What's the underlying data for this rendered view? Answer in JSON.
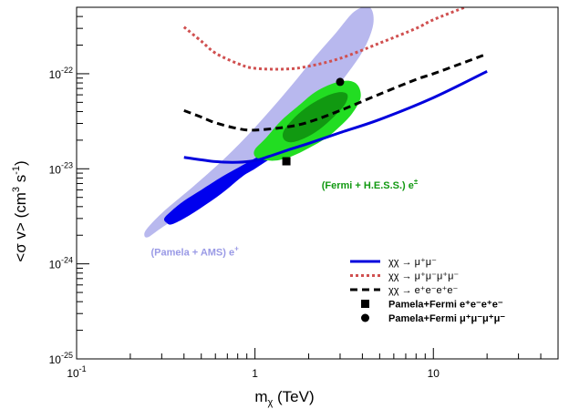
{
  "chart_data": {
    "type": "line",
    "xscale": "log",
    "yscale": "log",
    "xlim": [
      0.1,
      50
    ],
    "ylim": [
      1e-25,
      5e-22
    ],
    "xlabel_main": "m",
    "xlabel_sub": "χ",
    "xlabel_unit": " (TeV)",
    "ylabel_main": "<σ v> (cm",
    "ylabel_sup1": "3",
    "ylabel_mid": " s",
    "ylabel_sup2": "-1",
    "ylabel_end": ")",
    "x_ticks": [
      {
        "value": 0.1,
        "base": "10",
        "exp": "-1"
      },
      {
        "value": 1,
        "label": "1"
      },
      {
        "value": 10,
        "label": "10"
      }
    ],
    "y_ticks": [
      {
        "value": 1e-25,
        "base": "10",
        "exp": "-25"
      },
      {
        "value": 1e-24,
        "base": "10",
        "exp": "-24"
      },
      {
        "value": 1e-23,
        "base": "10",
        "exp": "-23"
      },
      {
        "value": 1e-22,
        "base": "10",
        "exp": "-22"
      }
    ],
    "series": [
      {
        "name": "χχ → μ⁺μ⁻",
        "color": "#0000dd",
        "dash": "solid",
        "x": [
          0.4,
          0.6,
          0.8,
          1.0,
          1.2,
          1.6,
          2.0,
          3.0,
          5.0,
          10.0,
          20.0
        ],
        "y": [
          1.32e-23,
          1.19e-23,
          1.17e-23,
          1.22e-23,
          1.35e-23,
          1.62e-23,
          1.85e-23,
          2.4e-23,
          3.3e-23,
          5.6e-23,
          1.06e-22
        ]
      },
      {
        "name": "χχ → μ⁺μ⁻μ⁺μ⁻",
        "color": "#d05050",
        "dash": "dotted",
        "x": [
          0.4,
          0.5,
          0.6,
          0.8,
          1.0,
          1.5,
          2.0,
          3.0,
          5.0,
          8.0,
          10.0,
          15.0
        ],
        "y": [
          3.1e-22,
          2.2e-22,
          1.65e-22,
          1.28e-22,
          1.14e-22,
          1.12e-22,
          1.2e-22,
          1.45e-22,
          2.1e-22,
          3e-22,
          3.7e-22,
          5e-22
        ]
      },
      {
        "name": "χχ → e⁺e⁻e⁺e⁻",
        "color": "#000000",
        "dash": "dashed",
        "x": [
          0.4,
          0.5,
          0.6,
          0.8,
          1.0,
          1.5,
          2.0,
          3.0,
          5.0,
          8.0,
          10.0,
          15.0,
          20.0
        ],
        "y": [
          4.1e-23,
          3.5e-23,
          3.05e-23,
          2.65e-23,
          2.55e-23,
          2.75e-23,
          3.1e-23,
          4.1e-23,
          6.1e-23,
          8.7e-23,
          1e-22,
          1.32e-22,
          1.62e-22
        ]
      }
    ],
    "regions": [
      {
        "name": "(Pamela + AMS) e",
        "sup": "+",
        "color": "#b8b8ee",
        "x": [
          0.25,
          0.3,
          0.45,
          0.7,
          1.0,
          1.5,
          2.2,
          3.0,
          4.0,
          4.6,
          4.4,
          3.6,
          2.8,
          2.1,
          1.6,
          1.2,
          0.9,
          0.65,
          0.45,
          0.32,
          0.26,
          0.24
        ],
        "y": [
          1.9e-24,
          2.4e-24,
          4e-24,
          7e-24,
          1.1e-23,
          2e-23,
          4e-23,
          8e-23,
          1.7e-22,
          3.3e-22,
          5e-22,
          4.5e-22,
          2.6e-22,
          1.4e-22,
          7.5e-23,
          4e-23,
          2.2e-23,
          1.2e-23,
          6.5e-24,
          3.8e-24,
          2.6e-24,
          2.1e-24
        ]
      },
      {
        "name": "Pamela + AMS core",
        "color": "#0000ee",
        "x": [
          0.32,
          0.34,
          0.4,
          0.5,
          0.65,
          0.85,
          1.0,
          1.2,
          1.3,
          1.2,
          1.05,
          0.95,
          0.8,
          0.65,
          0.5,
          0.4,
          0.34,
          0.31
        ],
        "y": [
          2.7e-24,
          2.6e-24,
          3e-24,
          3.9e-24,
          5.5e-24,
          8.3e-24,
          1e-23,
          1.25e-23,
          1.35e-23,
          1.45e-23,
          1.35e-23,
          1.22e-23,
          1.02e-23,
          8.2e-24,
          6e-24,
          4.6e-24,
          3.6e-24,
          3e-24
        ]
      },
      {
        "name": "(Fermi + H.E.S.S.) e",
        "sup": "±",
        "color": "#22dd22",
        "x": [
          1.0,
          1.1,
          1.3,
          1.6,
          2.0,
          2.5,
          3.0,
          3.5,
          3.9,
          3.8,
          3.4,
          2.8,
          2.2,
          1.8,
          1.4,
          1.15,
          1.0
        ],
        "y": [
          1.35e-23,
          1.25e-23,
          1.22e-23,
          1.35e-23,
          1.65e-23,
          2.1e-23,
          2.8e-23,
          3.8e-23,
          5.5e-23,
          7.4e-23,
          8.4e-23,
          8e-23,
          6.5e-23,
          4.8e-23,
          3.2e-23,
          2.1e-23,
          1.6e-23
        ]
      },
      {
        "name": "Fermi + H.E.S.S. core",
        "color": "#119911",
        "x": [
          1.45,
          1.6,
          1.9,
          2.3,
          2.8,
          3.2,
          3.3,
          3.0,
          2.5,
          2.0,
          1.65,
          1.45
        ],
        "y": [
          2.05e-23,
          1.9e-23,
          2.1e-23,
          2.6e-23,
          3.6e-23,
          4.8e-23,
          6e-23,
          6.4e-23,
          5.8e-23,
          4.6e-23,
          3.4e-23,
          2.5e-23
        ]
      }
    ],
    "points": [
      {
        "name": "Pamela+Fermi e⁺e⁻e⁺e⁻",
        "marker": "square",
        "x": 1.5,
        "y": 1.2e-23
      },
      {
        "name": "Pamela+Fermi μ⁺μ⁻μ⁺μ⁻",
        "marker": "circle",
        "x": 3.0,
        "y": 8.2e-23
      }
    ],
    "legend": {
      "placement": "bottom-right",
      "entries": [
        {
          "kind": "line",
          "style": "solid",
          "color": "#0000dd",
          "text": "χχ → μ⁺μ⁻"
        },
        {
          "kind": "line",
          "style": "dotted",
          "color": "#d05050",
          "text": "χχ → μ⁺μ⁻μ⁺μ⁻"
        },
        {
          "kind": "line",
          "style": "dashed",
          "color": "#000000",
          "text": "χχ → e⁺e⁻e⁺e⁻"
        },
        {
          "kind": "square",
          "text": "Pamela+Fermi e⁺e⁻e⁺e⁻"
        },
        {
          "kind": "circle",
          "text": "Pamela+Fermi μ⁺μ⁻μ⁺μ⁻"
        }
      ]
    }
  }
}
